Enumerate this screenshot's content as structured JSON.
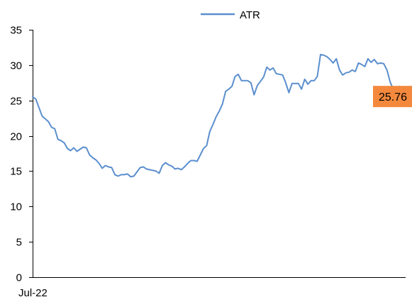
{
  "chart_data": {
    "type": "line",
    "title": "",
    "xlabel": "",
    "ylabel": "",
    "ylim": [
      0,
      35
    ],
    "yticks": [
      0,
      5,
      10,
      15,
      20,
      25,
      30,
      35
    ],
    "x_tick_labels": [
      "Jul-22"
    ],
    "grid": false,
    "legend_position": "top",
    "last_value_label": "25.76",
    "series": [
      {
        "name": "ATR",
        "color": "#5b8fce",
        "values": [
          25.5,
          25.2,
          24.0,
          22.8,
          22.4,
          22.0,
          21.2,
          21.0,
          19.5,
          19.3,
          19.0,
          18.2,
          17.9,
          18.3,
          17.8,
          18.1,
          18.4,
          18.3,
          17.3,
          16.9,
          16.6,
          16.1,
          15.4,
          15.8,
          15.6,
          15.5,
          14.5,
          14.3,
          14.5,
          14.5,
          14.6,
          14.2,
          14.3,
          14.9,
          15.5,
          15.6,
          15.3,
          15.2,
          15.1,
          15.0,
          14.7,
          15.8,
          16.2,
          15.9,
          15.7,
          15.3,
          15.4,
          15.2,
          15.6,
          16.1,
          16.5,
          16.5,
          16.4,
          17.3,
          18.2,
          18.6,
          20.6,
          21.6,
          22.7,
          23.5,
          24.5,
          26.3,
          26.6,
          27.0,
          28.4,
          28.7,
          27.8,
          27.8,
          27.8,
          27.5,
          25.8,
          27.1,
          27.7,
          28.3,
          29.7,
          29.3,
          29.6,
          28.8,
          28.7,
          28.6,
          27.5,
          26.1,
          27.4,
          27.4,
          27.4,
          26.6,
          28.0,
          27.3,
          27.8,
          27.8,
          28.4,
          31.5,
          31.4,
          31.2,
          30.8,
          30.3,
          30.9,
          29.3,
          28.6,
          28.9,
          29.0,
          29.3,
          29.1,
          30.3,
          30.1,
          29.8,
          30.9,
          30.4,
          30.8,
          30.2,
          30.3,
          30.2,
          29.3,
          27.6,
          26.6,
          26.7,
          27.0,
          25.76
        ]
      }
    ]
  }
}
